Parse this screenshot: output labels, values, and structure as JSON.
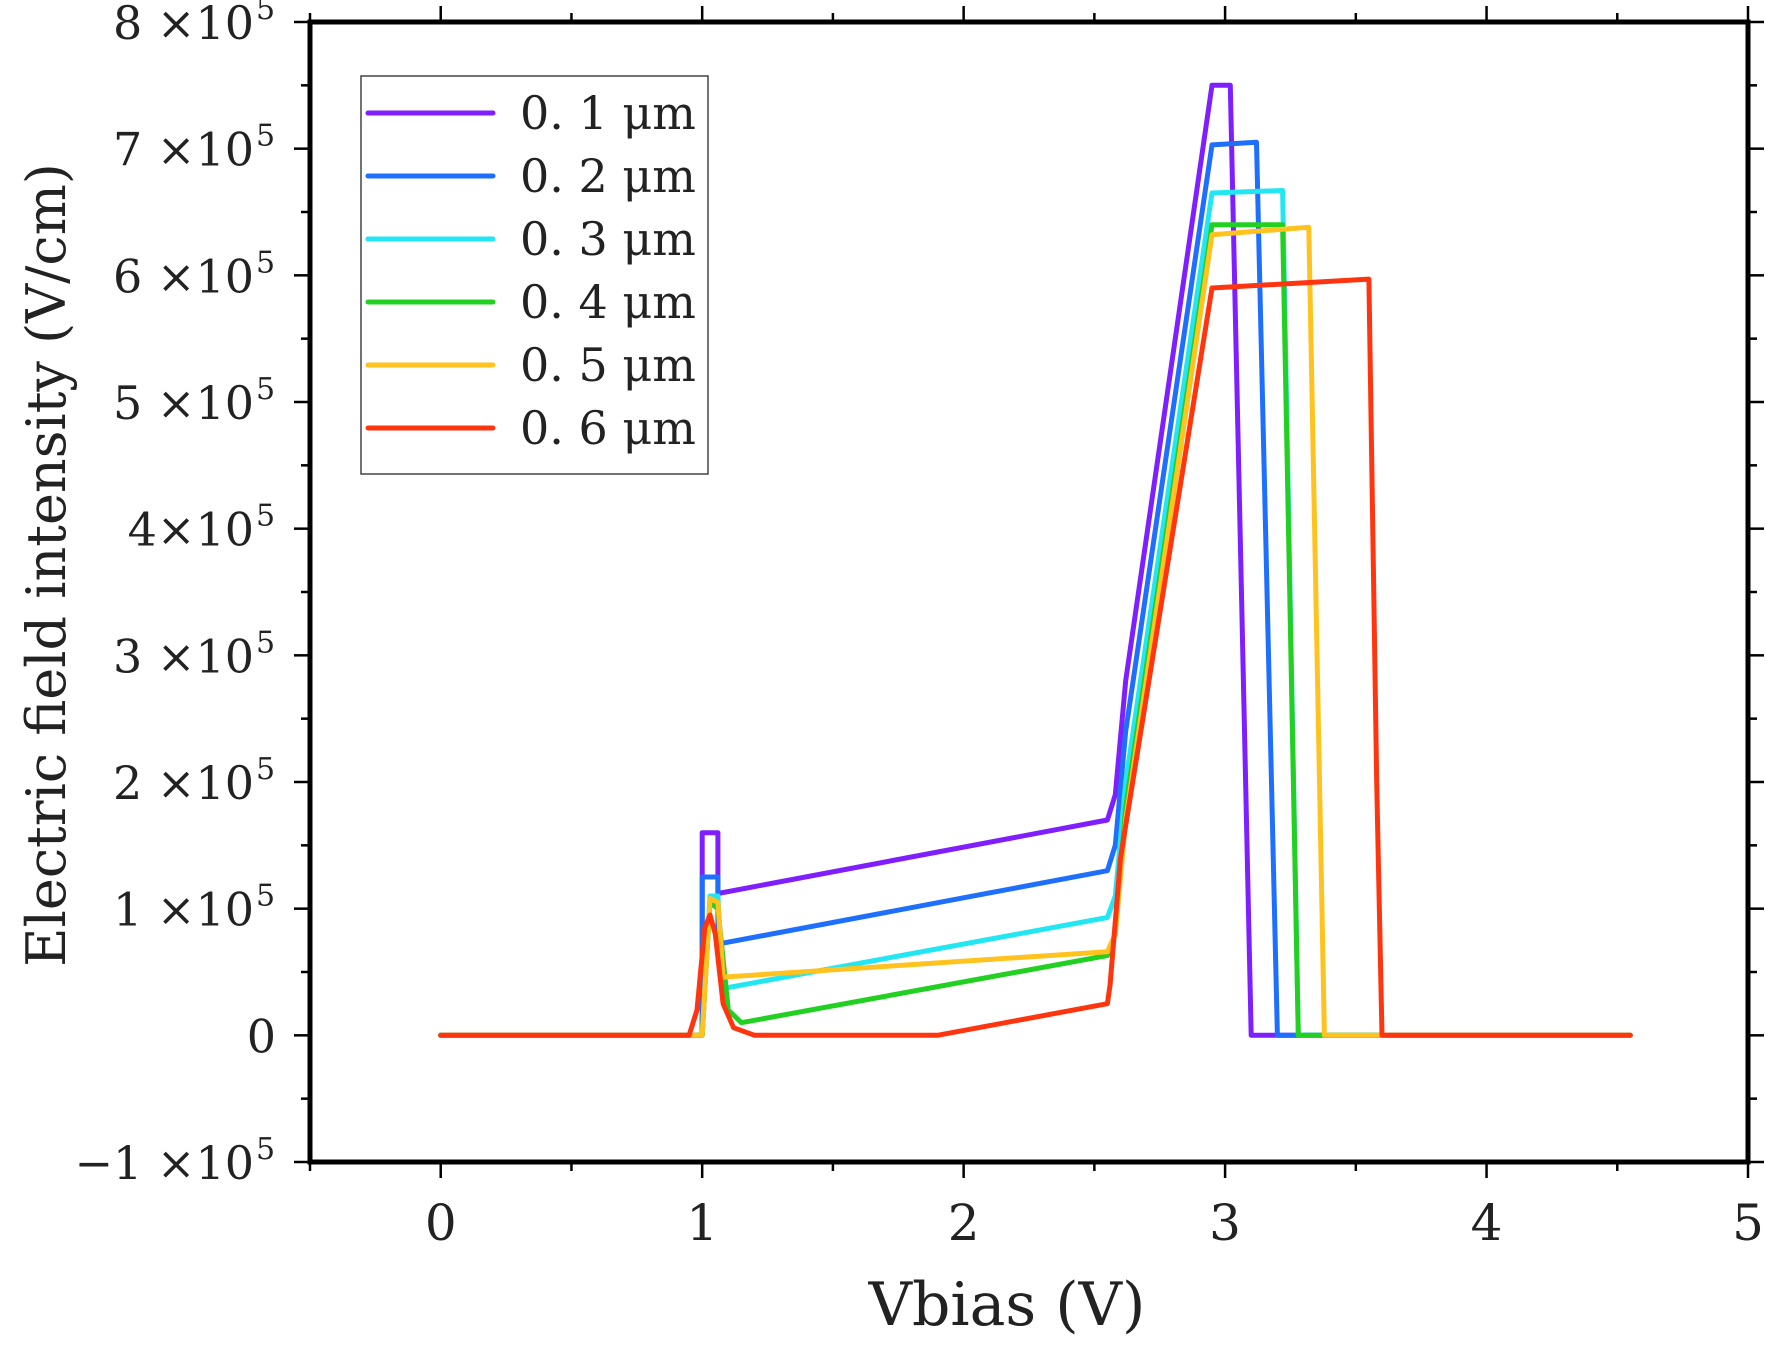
{
  "chart_data": {
    "type": "line",
    "title": "",
    "xlabel": "Vbias (V)",
    "ylabel": "Electric field intensity (V/cm)",
    "xlim": [
      -0.5,
      5
    ],
    "ylim": [
      -100000,
      800000
    ],
    "x_ticks": [
      {
        "value": 0,
        "label": "0"
      },
      {
        "value": 1,
        "label": "1"
      },
      {
        "value": 2,
        "label": "2"
      },
      {
        "value": 3,
        "label": "3"
      },
      {
        "value": 4,
        "label": "4"
      },
      {
        "value": 5,
        "label": "5"
      }
    ],
    "y_ticks": [
      {
        "value": 800000,
        "label": "8 ×10",
        "exp": "5"
      },
      {
        "value": 700000,
        "label": "7 ×10",
        "exp": "5"
      },
      {
        "value": 600000,
        "label": "6 ×10",
        "exp": "5"
      },
      {
        "value": 500000,
        "label": "5 ×10",
        "exp": "5"
      },
      {
        "value": 400000,
        "label": "4×10",
        "exp": "5"
      },
      {
        "value": 300000,
        "label": "3 ×10",
        "exp": "5"
      },
      {
        "value": 200000,
        "label": "2 ×10",
        "exp": "5"
      },
      {
        "value": 100000,
        "label": "1 ×10",
        "exp": "5"
      },
      {
        "value": 0,
        "label": "0",
        "exp": ""
      },
      {
        "value": -100000,
        "label": "−1 ×10",
        "exp": "5"
      }
    ],
    "legend_position": "top-left",
    "series": [
      {
        "name": "0. 1 μm",
        "color": "#7f1fff",
        "x": [
          0,
          0.95,
          1.0,
          1.0,
          1.06,
          1.06,
          2.55,
          2.58,
          2.62,
          2.95,
          3.02,
          3.1,
          3.12,
          4.55
        ],
        "y": [
          0,
          0,
          0,
          160000,
          160000,
          112000,
          170000,
          190000,
          280000,
          750000,
          750000,
          0,
          0,
          0
        ]
      },
      {
        "name": "0. 2 μm",
        "color": "#1f6fff",
        "x": [
          0,
          0.95,
          1.0,
          1.0,
          1.06,
          1.06,
          2.55,
          2.58,
          2.62,
          2.95,
          3.12,
          3.2,
          3.22,
          4.55
        ],
        "y": [
          0,
          0,
          0,
          125000,
          125000,
          72000,
          130000,
          150000,
          240000,
          703000,
          705000,
          0,
          0,
          0
        ]
      },
      {
        "name": "0. 3 μm",
        "color": "#22e6f2",
        "x": [
          0,
          0.95,
          1.0,
          1.03,
          1.06,
          1.08,
          2.55,
          2.58,
          2.62,
          2.95,
          3.22,
          3.28,
          3.3,
          4.55
        ],
        "y": [
          0,
          0,
          0,
          110000,
          110000,
          37000,
          93000,
          110000,
          200000,
          665000,
          667000,
          0,
          0,
          0
        ]
      },
      {
        "name": "0. 4 μm",
        "color": "#22d022",
        "x": [
          0,
          0.95,
          1.0,
          1.03,
          1.06,
          1.1,
          1.15,
          2.55,
          2.58,
          2.62,
          2.95,
          3.22,
          3.28,
          3.3,
          4.55
        ],
        "y": [
          0,
          0,
          0,
          105000,
          100000,
          20000,
          10000,
          63000,
          80000,
          180000,
          640000,
          640000,
          0,
          0,
          0
        ]
      },
      {
        "name": "0. 5 μm",
        "color": "#ffc21f",
        "x": [
          0,
          0.95,
          1.0,
          1.03,
          1.06,
          1.08,
          2.55,
          2.58,
          2.62,
          2.95,
          3.32,
          3.38,
          3.4,
          4.55
        ],
        "y": [
          0,
          0,
          0,
          108000,
          105000,
          46000,
          66000,
          80000,
          170000,
          632000,
          638000,
          0,
          0,
          0
        ]
      },
      {
        "name": "0. 6 μm",
        "color": "#ff3510",
        "x": [
          0,
          0.95,
          0.98,
          1.01,
          1.03,
          1.05,
          1.08,
          1.12,
          1.2,
          1.9,
          2.55,
          2.56,
          2.6,
          2.95,
          3.55,
          3.58,
          3.6,
          4.55
        ],
        "y": [
          0,
          0,
          20000,
          85000,
          95000,
          80000,
          25000,
          6000,
          0,
          0,
          25000,
          40000,
          140000,
          590000,
          597000,
          200000,
          0,
          0
        ]
      }
    ]
  }
}
